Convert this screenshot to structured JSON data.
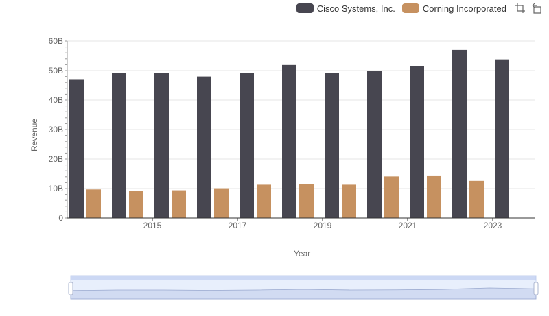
{
  "legend": {
    "series0": "Cisco Systems, Inc.",
    "series1": "Corning Incorporated"
  },
  "toolbox": {
    "zoom_icon": "data-zoom-icon",
    "restore_icon": "restore-icon"
  },
  "colors": {
    "cisco": "#474650",
    "corning": "#c69160",
    "grid": "#e6e6e6",
    "zoom_fill": "#d6e2fa",
    "zoom_border": "#c5d2ee"
  },
  "chart_data": {
    "type": "bar",
    "xlabel": "Year",
    "ylabel": "Revenue",
    "categories": [
      "2014",
      "2015",
      "2016",
      "2017",
      "2018",
      "2019",
      "2020",
      "2021",
      "2022",
      "2023",
      "2024"
    ],
    "x_tick_labels": [
      "2015",
      "2017",
      "2019",
      "2021",
      "2023"
    ],
    "y_tick_labels": [
      "0",
      "10B",
      "20B",
      "30B",
      "40B",
      "50B",
      "60B"
    ],
    "ylim": [
      0,
      60000000000
    ],
    "grid": true,
    "legend_position": "top-right",
    "series": [
      {
        "name": "Cisco Systems, Inc.",
        "values": [
          47100000000,
          49200000000,
          49250000000,
          48000000000,
          49300000000,
          51900000000,
          49300000000,
          49800000000,
          51600000000,
          57000000000,
          53800000000
        ]
      },
      {
        "name": "Corning Incorporated",
        "values": [
          9700000000,
          9100000000,
          9400000000,
          10100000000,
          11300000000,
          11500000000,
          11300000000,
          14100000000,
          14200000000,
          12600000000,
          null
        ]
      }
    ]
  }
}
